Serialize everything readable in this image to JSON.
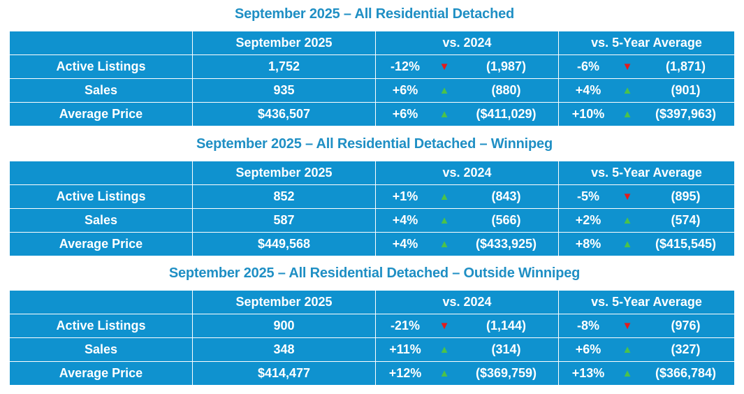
{
  "colors": {
    "title": "#1f8fc4",
    "table_bg": "#0f92cf",
    "up_arrow": "#4cc24a",
    "down_arrow": "#e41b1b"
  },
  "headers": {
    "period": "September 2025",
    "vs_prior": "vs. 2024",
    "vs_avg": "vs. 5-Year Average"
  },
  "sections": [
    {
      "title": "September 2025 – All Residential Detached",
      "rows": [
        {
          "label": "Active Listings",
          "value": "1,752",
          "vs_prior": {
            "pct": "-12%",
            "dir": "down",
            "prev": "(1,987)"
          },
          "vs_avg": {
            "pct": "-6%",
            "dir": "down",
            "prev": "(1,871)"
          }
        },
        {
          "label": "Sales",
          "value": "935",
          "vs_prior": {
            "pct": "+6%",
            "dir": "up",
            "prev": "(880)"
          },
          "vs_avg": {
            "pct": "+4%",
            "dir": "up",
            "prev": "(901)"
          }
        },
        {
          "label": "Average Price",
          "value": "$436,507",
          "vs_prior": {
            "pct": "+6%",
            "dir": "up",
            "prev": "($411,029)"
          },
          "vs_avg": {
            "pct": "+10%",
            "dir": "up",
            "prev": "($397,963)"
          }
        }
      ]
    },
    {
      "title": "September 2025 – All Residential Detached – Winnipeg",
      "rows": [
        {
          "label": "Active Listings",
          "value": "852",
          "vs_prior": {
            "pct": "+1%",
            "dir": "up",
            "prev": "(843)"
          },
          "vs_avg": {
            "pct": "-5%",
            "dir": "down",
            "prev": "(895)"
          }
        },
        {
          "label": "Sales",
          "value": "587",
          "vs_prior": {
            "pct": "+4%",
            "dir": "up",
            "prev": "(566)"
          },
          "vs_avg": {
            "pct": "+2%",
            "dir": "up",
            "prev": "(574)"
          }
        },
        {
          "label": "Average Price",
          "value": "$449,568",
          "vs_prior": {
            "pct": "+4%",
            "dir": "up",
            "prev": "($433,925)"
          },
          "vs_avg": {
            "pct": "+8%",
            "dir": "up",
            "prev": "($415,545)"
          }
        }
      ]
    },
    {
      "title": "September 2025 – All Residential Detached – Outside Winnipeg",
      "rows": [
        {
          "label": "Active Listings",
          "value": "900",
          "vs_prior": {
            "pct": "-21%",
            "dir": "down",
            "prev": "(1,144)"
          },
          "vs_avg": {
            "pct": "-8%",
            "dir": "down",
            "prev": "(976)"
          }
        },
        {
          "label": "Sales",
          "value": "348",
          "vs_prior": {
            "pct": "+11%",
            "dir": "up",
            "prev": "(314)"
          },
          "vs_avg": {
            "pct": "+6%",
            "dir": "up",
            "prev": "(327)"
          }
        },
        {
          "label": "Average Price",
          "value": "$414,477",
          "vs_prior": {
            "pct": "+12%",
            "dir": "up",
            "prev": "($369,759)"
          },
          "vs_avg": {
            "pct": "+13%",
            "dir": "up",
            "prev": "($366,784)"
          }
        }
      ]
    }
  ]
}
